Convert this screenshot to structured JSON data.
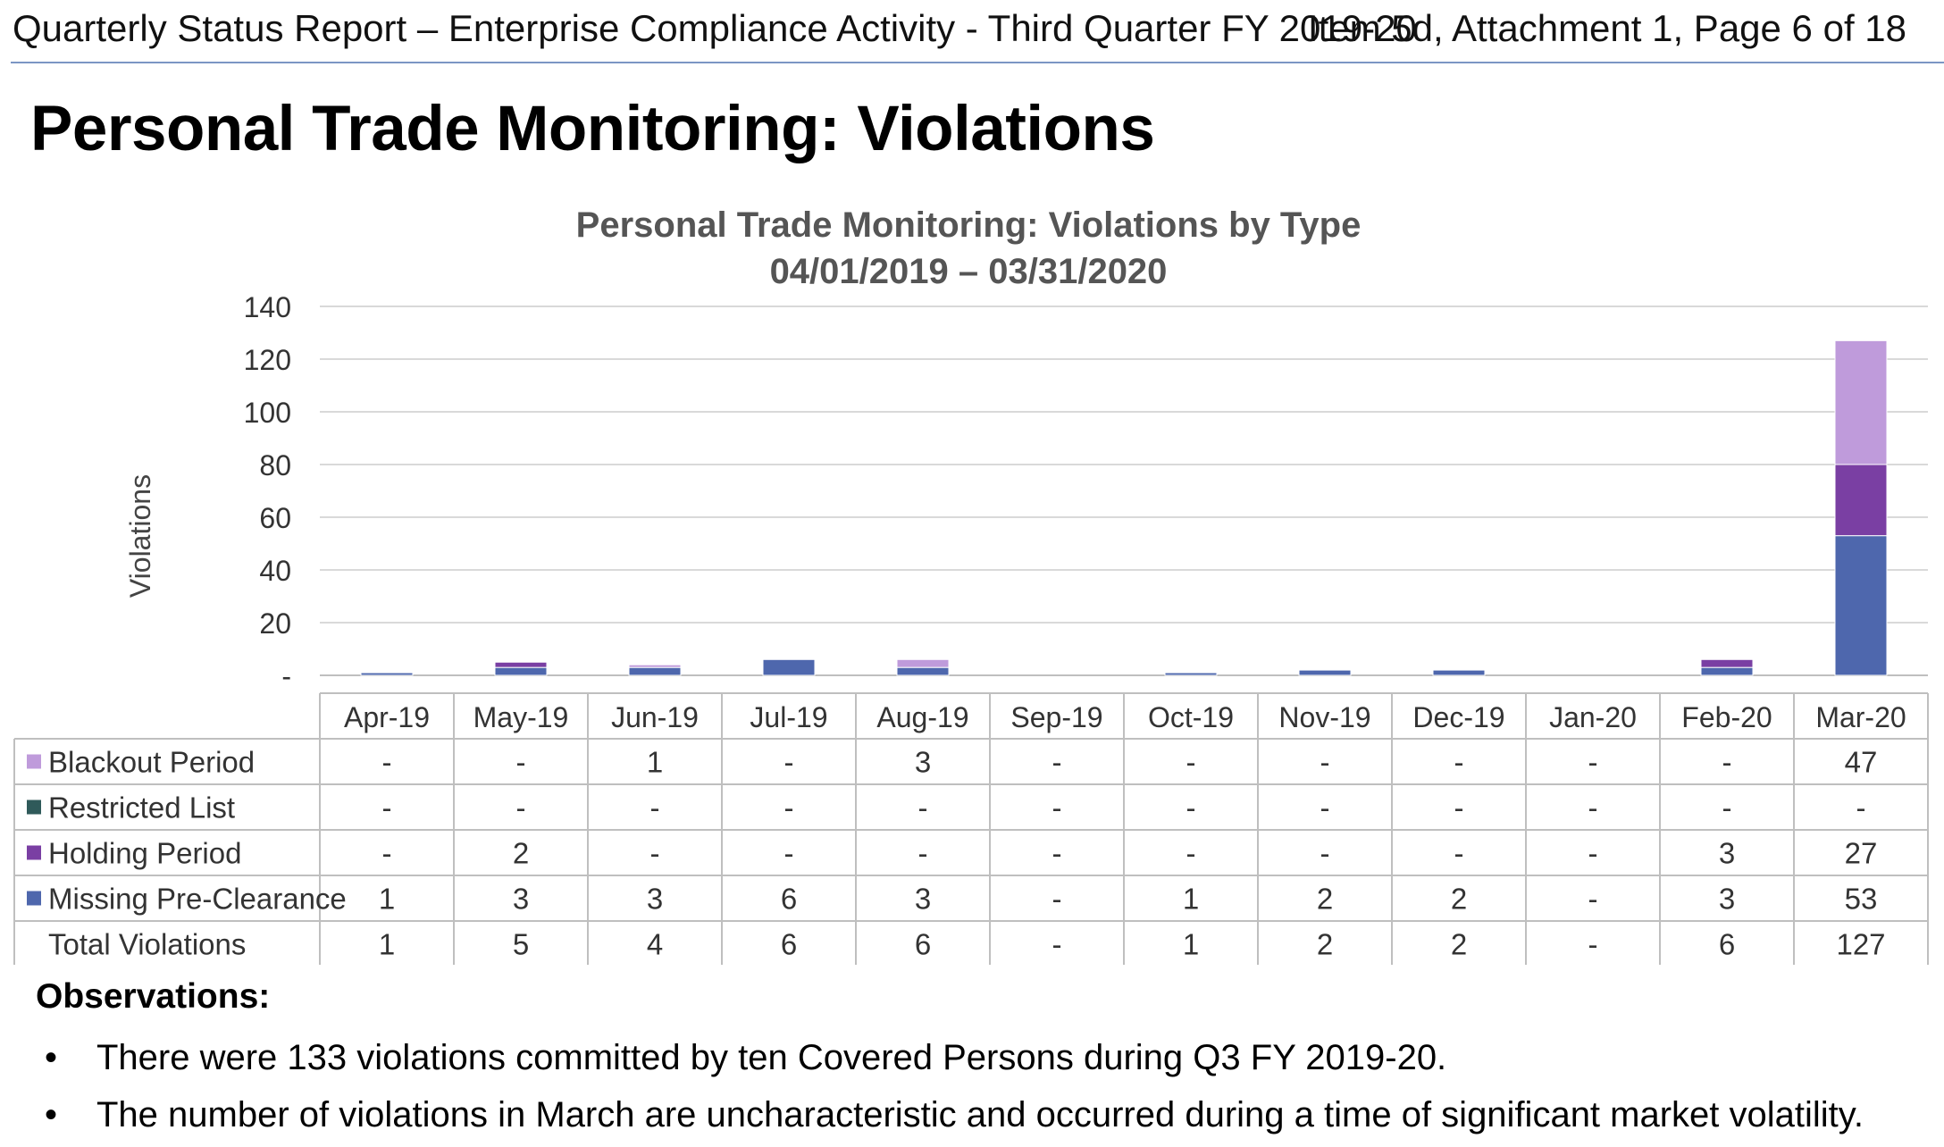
{
  "header": {
    "left": "Quarterly Status Report – Enterprise Compliance Activity - Third Quarter FY 2019-20",
    "right": "Item 5d, Attachment 1, Page 6 of 18"
  },
  "page_title": "Personal Trade Monitoring: Violations",
  "chart_data": {
    "type": "bar",
    "stacked": true,
    "title": "Personal Trade Monitoring: Violations by Type",
    "subtitle": "04/01/2019 – 03/31/2020",
    "xlabel": "",
    "ylabel": "Violations",
    "ylim": [
      0,
      140
    ],
    "yticks": [
      {
        "value": 0,
        "label": "-"
      },
      {
        "value": 20,
        "label": "20"
      },
      {
        "value": 40,
        "label": "40"
      },
      {
        "value": 60,
        "label": "60"
      },
      {
        "value": 80,
        "label": "80"
      },
      {
        "value": 100,
        "label": "100"
      },
      {
        "value": 120,
        "label": "120"
      },
      {
        "value": 140,
        "label": "140"
      }
    ],
    "grid": true,
    "legend_placement": "data-table",
    "categories": [
      "Apr-19",
      "May-19",
      "Jun-19",
      "Jul-19",
      "Aug-19",
      "Sep-19",
      "Oct-19",
      "Nov-19",
      "Dec-19",
      "Jan-20",
      "Feb-20",
      "Mar-20"
    ],
    "series": [
      {
        "name": "Missing Pre-Clearance",
        "color": "#4e67ad",
        "values": [
          1,
          3,
          3,
          6,
          3,
          0,
          1,
          2,
          2,
          0,
          3,
          53
        ]
      },
      {
        "name": "Holding Period",
        "color": "#7a3fa3",
        "values": [
          0,
          2,
          0,
          0,
          0,
          0,
          0,
          0,
          0,
          0,
          3,
          27
        ]
      },
      {
        "name": "Restricted List",
        "color": "#2f5a5a",
        "values": [
          0,
          0,
          0,
          0,
          0,
          0,
          0,
          0,
          0,
          0,
          0,
          0
        ]
      },
      {
        "name": "Blackout Period",
        "color": "#bf9bdb",
        "values": [
          0,
          0,
          1,
          0,
          3,
          0,
          0,
          0,
          0,
          0,
          0,
          47
        ]
      }
    ],
    "table": {
      "rows": [
        {
          "label": "Blackout Period",
          "color": "#bf9bdb",
          "cells": [
            "-",
            "-",
            "1",
            "-",
            "3",
            "-",
            "-",
            "-",
            "-",
            "-",
            "-",
            "47"
          ]
        },
        {
          "label": "Restricted List",
          "color": "#2f5a5a",
          "cells": [
            "-",
            "-",
            "-",
            "-",
            "-",
            "-",
            "-",
            "-",
            "-",
            "-",
            "-",
            "-"
          ]
        },
        {
          "label": "Holding Period",
          "color": "#7a3fa3",
          "cells": [
            "-",
            "2",
            "-",
            "-",
            "-",
            "-",
            "-",
            "-",
            "-",
            "-",
            "3",
            "27"
          ]
        },
        {
          "label": "Missing Pre-Clearance",
          "color": "#4e67ad",
          "cells": [
            "1",
            "3",
            "3",
            "6",
            "3",
            "-",
            "1",
            "2",
            "2",
            "-",
            "3",
            "53"
          ]
        },
        {
          "label": "Total Violations",
          "color": "",
          "cells": [
            "1",
            "5",
            "4",
            "6",
            "6",
            "-",
            "1",
            "2",
            "2",
            "-",
            "6",
            "127"
          ]
        }
      ]
    }
  },
  "observations": {
    "heading": "Observations:",
    "bullet": "•",
    "items": [
      "There were 133 violations committed by ten Covered Persons during Q3 FY 2019-20.",
      "The number of violations in March are uncharacteristic and occurred during a time of significant market volatility."
    ]
  }
}
